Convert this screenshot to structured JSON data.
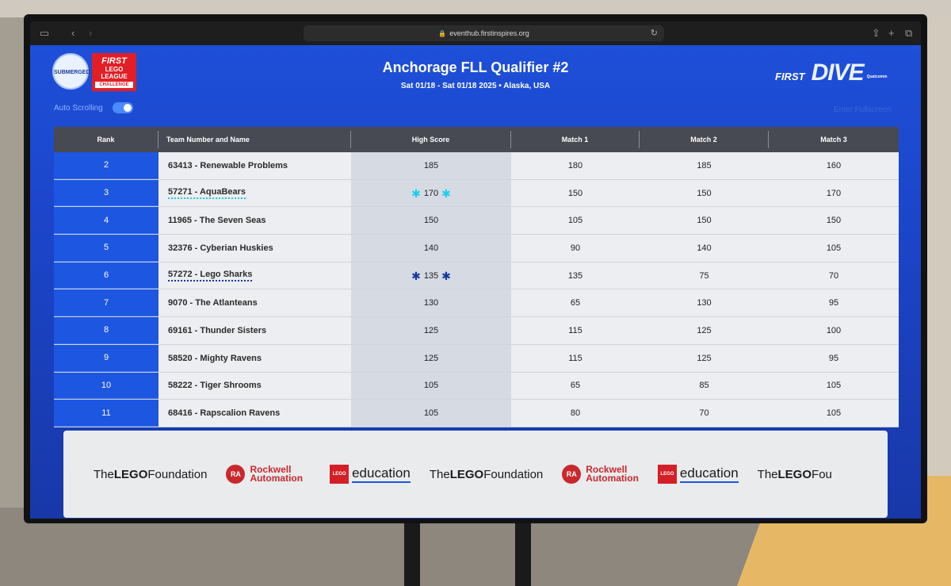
{
  "browser": {
    "url": "eventhub.firstinspires.org"
  },
  "header": {
    "logo_submerged": "SUBMERGED",
    "logo_fll": [
      "FIRST",
      "LEGO",
      "LEAGUE",
      "CHALLENGE"
    ],
    "title": "Anchorage FLL Qualifier #2",
    "subtitle": "Sat 01/18 - Sat 01/18 2025 • Alaska, USA",
    "brand_first": "FIRST",
    "brand_dive": "DIVE",
    "brand_sponsor": "Qualcomm",
    "auto_scrolling_label": "Auto Scrolling",
    "auto_scrolling_on": true,
    "fullscreen_label": "Enter Fullscreen"
  },
  "table": {
    "headers": [
      "Rank",
      "Team Number and Name",
      "High Score",
      "Match 1",
      "Match 2",
      "Match 3"
    ],
    "rows": [
      {
        "rank": "2",
        "team": "63413 - Renewable Problems",
        "high": "185",
        "m1": "180",
        "m2": "185",
        "m3": "160"
      },
      {
        "rank": "3",
        "team": "57271 - AquaBears",
        "high": "170",
        "m1": "150",
        "m2": "150",
        "m3": "170"
      },
      {
        "rank": "4",
        "team": "11965 - The Seven Seas",
        "high": "150",
        "m1": "105",
        "m2": "150",
        "m3": "150"
      },
      {
        "rank": "5",
        "team": "32376 - Cyberian Huskies",
        "high": "140",
        "m1": "90",
        "m2": "140",
        "m3": "105"
      },
      {
        "rank": "6",
        "team": "57272 - Lego Sharks",
        "high": "135",
        "m1": "135",
        "m2": "75",
        "m3": "70"
      },
      {
        "rank": "7",
        "team": "9070 - The Atlanteans",
        "high": "130",
        "m1": "65",
        "m2": "130",
        "m3": "95"
      },
      {
        "rank": "8",
        "team": "69161 - Thunder Sisters",
        "high": "125",
        "m1": "115",
        "m2": "125",
        "m3": "100"
      },
      {
        "rank": "9",
        "team": "58520 - Mighty Ravens",
        "high": "125",
        "m1": "115",
        "m2": "125",
        "m3": "95"
      },
      {
        "rank": "10",
        "team": "58222 - Tiger Shrooms",
        "high": "105",
        "m1": "65",
        "m2": "85",
        "m3": "105"
      },
      {
        "rank": "11",
        "team": "68416 - Rapscalion Ravens",
        "high": "105",
        "m1": "80",
        "m2": "70",
        "m3": "105"
      }
    ]
  },
  "sponsors": {
    "lego_foundation_pre": "The ",
    "lego_foundation_bold": "LEGO",
    "lego_foundation_post": " Foundation",
    "ra_badge": "RA",
    "ra_line1": "Rockwell",
    "ra_line2": "Automation",
    "lego_badge": "LEGO",
    "education": "education",
    "lego_foundation_cut": " Fou"
  },
  "colors": {
    "page_blue": "#1e4fd8",
    "rank_blue": "#1d56e0",
    "header_gray": "#474a52",
    "annotation_cyan": "#18d0f0",
    "annotation_navy": "#103a9a"
  }
}
